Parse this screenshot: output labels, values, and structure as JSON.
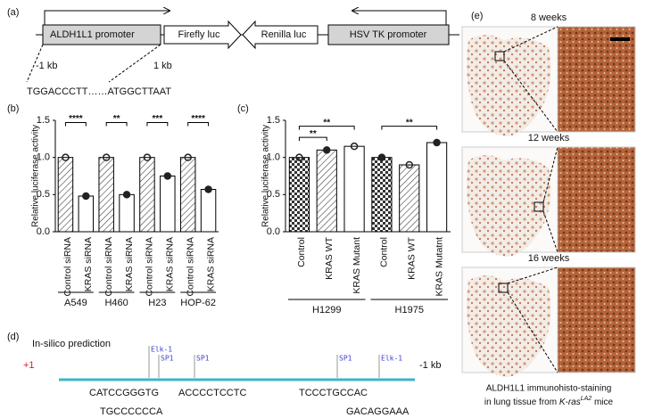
{
  "panel_a": {
    "label": "(a)",
    "boxes": [
      "ALDH1L1 promoter",
      "Firefly luc",
      "Renilla luc",
      "HSV TK promoter"
    ],
    "left_mark": "-1 kb",
    "right_mark": "1 kb",
    "sequence": "TGGACCCTT……ATGGCTTAAT"
  },
  "chart_data": [
    {
      "type": "bar",
      "label": "(b)",
      "y_label": "Relative luciferase activity",
      "categories": [
        "Control siRNA",
        "KRAS siRNA",
        "Control siRNA",
        "KRAS siRNA",
        "Control siRNA",
        "KRAS siRNA",
        "Control siRNA",
        "KRAS siRNA"
      ],
      "groups": [
        "A549",
        "H460",
        "H23",
        "HOP-62"
      ],
      "values": [
        1.0,
        0.48,
        1.0,
        0.5,
        1.0,
        0.75,
        1.0,
        0.57
      ],
      "fills": [
        "hatch",
        "white",
        "hatch",
        "white",
        "hatch",
        "white",
        "hatch",
        "white"
      ],
      "significance": [
        "****",
        "**",
        "***",
        "****"
      ],
      "ylim": [
        0,
        1.5
      ],
      "yticks": [
        {
          "value": 0,
          "label": "0.0"
        },
        0.5,
        {
          "value": 1,
          "label": "1.0"
        },
        1.5
      ]
    },
    {
      "type": "bar",
      "label": "(c)",
      "y_label": "Relative luciferase activity",
      "categories": [
        "Control",
        "KRAS WT",
        "KRAS Mutant",
        "Control",
        "KRAS WT",
        "KRAS Mutatnt"
      ],
      "groups": [
        "H1299",
        "H1975"
      ],
      "values": [
        1.0,
        1.1,
        1.15,
        1.0,
        0.9,
        1.2
      ],
      "fills": [
        "check",
        "hatch",
        "white",
        "check",
        "hatch",
        "white"
      ],
      "significance": [
        "**",
        "**",
        "**"
      ],
      "ylim": [
        0,
        1.5
      ],
      "yticks": [
        {
          "value": 0,
          "label": "0.0"
        },
        0.5,
        {
          "value": 1,
          "label": "1.0"
        },
        1.5
      ]
    }
  ],
  "panel_d": {
    "label": "(d)",
    "title": "In-silico prediction",
    "start": "+1",
    "end": "-1 kb",
    "sites": [
      "Elk-1",
      "SP1",
      "SP1",
      "SP1",
      "Elk-1"
    ],
    "sequences": [
      "CATCCGGGTG",
      "TGCCCCCCA",
      "ACCCCTCCTC",
      "TCCCTGCCAC",
      "GACAGGAAA"
    ]
  },
  "panel_e": {
    "label": "(e)",
    "timepoints": [
      "8 weeks",
      "12 weeks",
      "16 weeks"
    ],
    "caption": [
      "ALDH1L1 immunohisto-staining",
      "in lung tissue from ",
      "K-ras",
      "LA2",
      " mice"
    ]
  }
}
